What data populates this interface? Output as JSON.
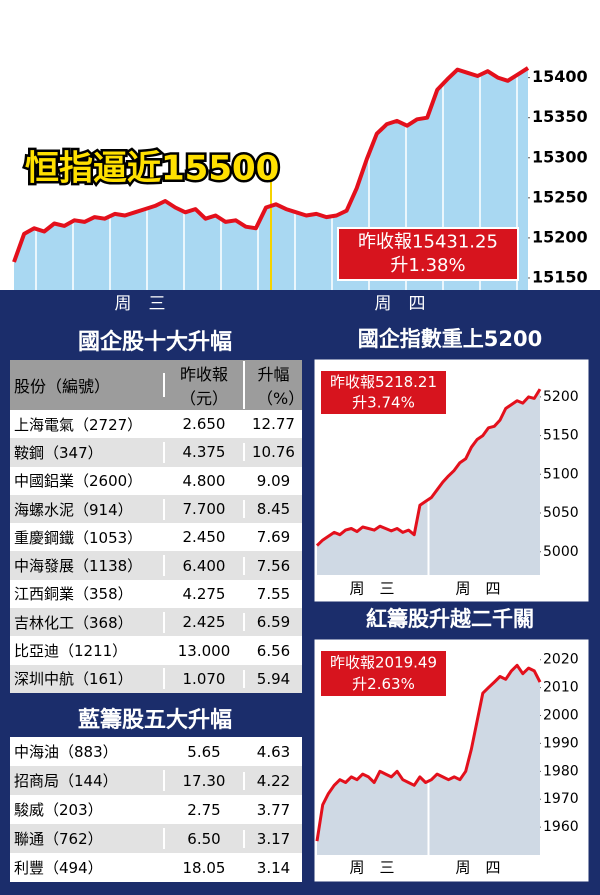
{
  "chart_data": [
    {
      "type": "line",
      "title": "恒指逼近15500",
      "x_labels": [
        "周　三",
        "周　四"
      ],
      "series": [
        {
          "color": "#e3101c",
          "values": [
            15170,
            15205,
            15212,
            15208,
            15218,
            15215,
            15222,
            15220,
            15226,
            15224,
            15230,
            15228,
            15232,
            15236,
            15240,
            15246,
            15238,
            15232,
            15236,
            15224,
            15228,
            15220,
            15222,
            15214,
            15212,
            15238,
            15242,
            15236,
            15232,
            15228,
            15230,
            15226,
            15228,
            15234,
            15262,
            15298,
            15330,
            15342,
            15346,
            15340,
            15348,
            15350,
            15385,
            15398,
            15410,
            15406,
            15402,
            15408,
            15400,
            15396,
            15404,
            15412
          ]
        }
      ],
      "ylim": [
        15135,
        15422
      ],
      "yticks": [
        15150,
        15200,
        15250,
        15300,
        15350,
        15400
      ],
      "annotation": [
        "昨收報15431.25",
        "升1.38%"
      ]
    },
    {
      "type": "line",
      "title": "國企指數重上5200",
      "x_labels": [
        "周　三",
        "周　四"
      ],
      "series": [
        {
          "color": "#e3101c",
          "values": [
            5008,
            5015,
            5020,
            5025,
            5022,
            5028,
            5030,
            5026,
            5032,
            5030,
            5028,
            5033,
            5030,
            5027,
            5030,
            5025,
            5028,
            5022,
            5060,
            5065,
            5070,
            5080,
            5090,
            5098,
            5105,
            5115,
            5120,
            5135,
            5145,
            5150,
            5160,
            5162,
            5170,
            5185,
            5190,
            5195,
            5192,
            5200,
            5198,
            5210
          ]
        }
      ],
      "ylim": [
        4970,
        5245
      ],
      "yticks": [
        5000,
        5050,
        5100,
        5150,
        5200
      ],
      "annotation": [
        "昨收報5218.21",
        "升3.74%"
      ]
    },
    {
      "type": "line",
      "title": "紅籌股升越二千關",
      "x_labels": [
        "周　三",
        "周　四"
      ],
      "series": [
        {
          "color": "#e3101c",
          "values": [
            1955,
            1968,
            1972,
            1975,
            1977,
            1976,
            1978,
            1977,
            1979,
            1978,
            1976,
            1980,
            1979,
            1978,
            1980,
            1977,
            1976,
            1975,
            1978,
            1976,
            1977,
            1979,
            1978,
            1977,
            1978,
            1977,
            1980,
            1988,
            1998,
            2008,
            2010,
            2012,
            2014,
            2013,
            2016,
            2018,
            2015,
            2017,
            2016,
            2012
          ]
        }
      ],
      "ylim": [
        1950,
        2026
      ],
      "yticks": [
        1960,
        1970,
        1980,
        1990,
        2000,
        2010,
        2020
      ],
      "annotation": [
        "昨收報2019.49",
        "升2.63%"
      ]
    }
  ],
  "tables": [
    {
      "title": "國企股十大升幅",
      "header": [
        "股份（編號）",
        "昨收報（元）",
        "升幅（%）"
      ],
      "rows": [
        [
          "上海電氣（2727）",
          "2.650",
          "12.77"
        ],
        [
          "鞍鋼（347）",
          "4.375",
          "10.76"
        ],
        [
          "中國鋁業（2600）",
          "4.800",
          "9.09"
        ],
        [
          "海螺水泥（914）",
          "7.700",
          "8.45"
        ],
        [
          "重慶鋼鐵（1053）",
          "2.450",
          "7.69"
        ],
        [
          "中海發展（1138）",
          "6.400",
          "7.56"
        ],
        [
          "江西銅業（358）",
          "4.275",
          "7.55"
        ],
        [
          "吉林化工（368）",
          "2.425",
          "6.59"
        ],
        [
          "比亞迪（1211）",
          "13.000",
          "6.56"
        ],
        [
          "深圳中航（161）",
          "1.070",
          "5.94"
        ]
      ]
    },
    {
      "title": "藍籌股五大升幅",
      "rows": [
        [
          "中海油（883）",
          "5.65",
          "4.63"
        ],
        [
          "招商局（144）",
          "17.30",
          "4.22"
        ],
        [
          "駿威（203）",
          "2.75",
          "3.77"
        ],
        [
          "聯通（762）",
          "6.50",
          "3.17"
        ],
        [
          "利豐（494）",
          "18.05",
          "3.14"
        ]
      ]
    }
  ]
}
